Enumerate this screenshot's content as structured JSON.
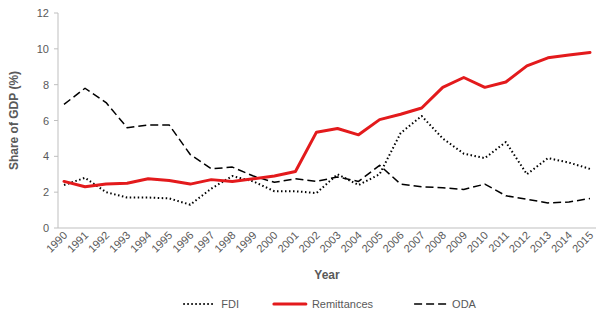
{
  "chart_data": {
    "type": "line",
    "xlabel": "Year",
    "ylabel": "Share of GDP (%)",
    "categories": [
      "1990",
      "1991",
      "1992",
      "1993",
      "1994",
      "1995",
      "1996",
      "1997",
      "1998",
      "1999",
      "2000",
      "2001",
      "2002",
      "2003",
      "2004",
      "2005",
      "2006",
      "2007",
      "2008",
      "2009",
      "2010",
      "2011",
      "2012",
      "2013",
      "2014",
      "2015"
    ],
    "series": [
      {
        "name": "FDI",
        "color": "#000000",
        "line_style": "dotted",
        "values": [
          2.4,
          2.8,
          2.0,
          1.7,
          1.7,
          1.65,
          1.3,
          2.2,
          2.9,
          2.6,
          2.05,
          2.05,
          1.95,
          3.0,
          2.4,
          3.0,
          5.3,
          6.25,
          5.0,
          4.15,
          3.9,
          4.8,
          3.0,
          3.9,
          3.65,
          3.3
        ]
      },
      {
        "name": "Remittances",
        "color": "#e31a1c",
        "line_style": "solid",
        "values": [
          2.6,
          2.3,
          2.45,
          2.5,
          2.75,
          2.65,
          2.45,
          2.7,
          2.6,
          2.75,
          2.9,
          3.15,
          5.35,
          5.55,
          5.2,
          6.05,
          6.35,
          6.7,
          7.85,
          8.4,
          7.85,
          8.15,
          9.05,
          9.5,
          9.65,
          9.8
        ]
      },
      {
        "name": "ODA",
        "color": "#000000",
        "line_style": "dashed",
        "values": [
          6.9,
          7.8,
          7.0,
          5.6,
          5.75,
          5.75,
          4.1,
          3.3,
          3.4,
          2.9,
          2.55,
          2.75,
          2.6,
          2.85,
          2.6,
          3.5,
          2.45,
          2.3,
          2.25,
          2.15,
          2.45,
          1.8,
          1.6,
          1.4,
          1.45,
          1.65
        ]
      }
    ],
    "ylim": [
      0,
      12
    ],
    "yticks": [
      0,
      2,
      4,
      6,
      8,
      10,
      12
    ],
    "grid": false,
    "legend": "bottom"
  }
}
